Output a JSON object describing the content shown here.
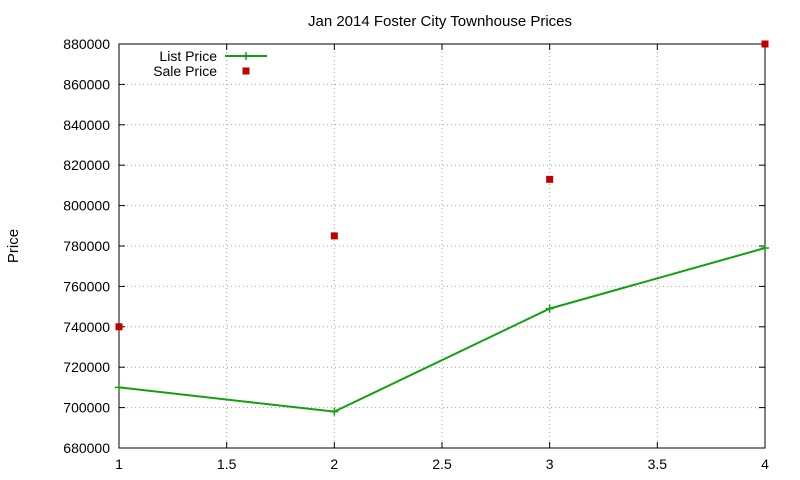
{
  "chart_data": {
    "type": "line",
    "title": "Jan 2014 Foster City Townhouse Prices",
    "xlabel": "",
    "ylabel": "Price",
    "xlim": [
      1,
      4
    ],
    "ylim": [
      680000,
      880000
    ],
    "x_ticks": [
      "1",
      "1.5",
      "2",
      "2.5",
      "3",
      "3.5",
      "4"
    ],
    "y_ticks": [
      "680000",
      "700000",
      "720000",
      "740000",
      "760000",
      "780000",
      "800000",
      "820000",
      "840000",
      "860000",
      "880000"
    ],
    "grid": true,
    "legend_position": "top-left",
    "series": [
      {
        "name": "List Price",
        "style": "linespoints",
        "marker": "plus",
        "color": "#10a010",
        "points": [
          {
            "x": 1,
            "y": 710000
          },
          {
            "x": 2,
            "y": 698000
          },
          {
            "x": 3,
            "y": 749000
          },
          {
            "x": 4,
            "y": 779000
          }
        ]
      },
      {
        "name": "Sale Price",
        "style": "points",
        "marker": "square",
        "color": "#c00000",
        "points": [
          {
            "x": 1,
            "y": 740000
          },
          {
            "x": 2,
            "y": 785000
          },
          {
            "x": 3,
            "y": 813000
          },
          {
            "x": 4,
            "y": 880000
          }
        ]
      }
    ]
  }
}
